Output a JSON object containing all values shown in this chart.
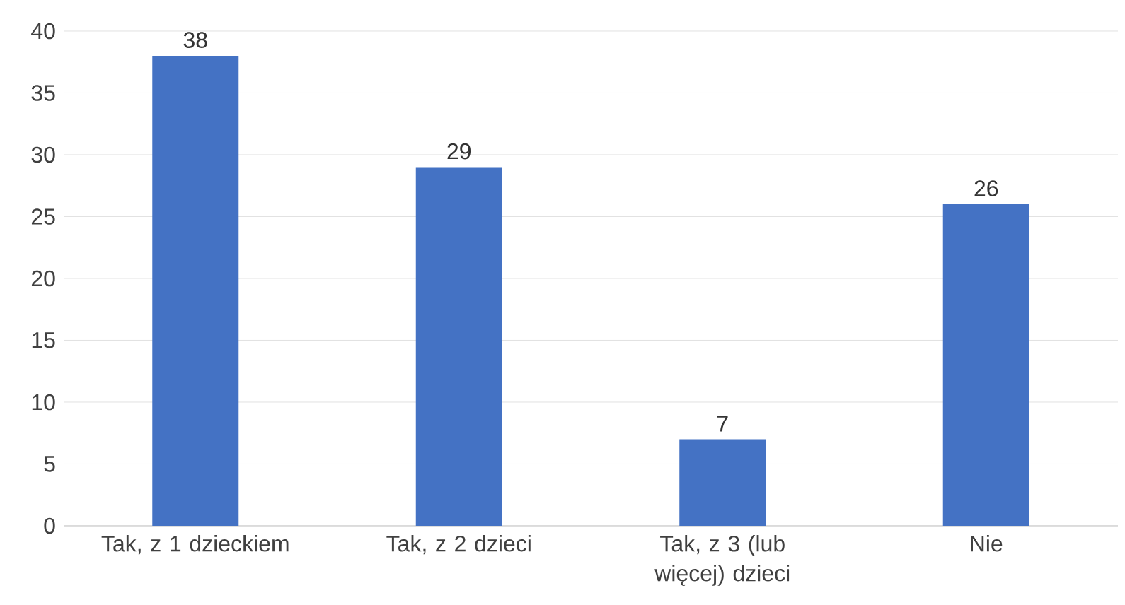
{
  "chart_data": {
    "type": "bar",
    "categories": [
      "Tak, z 1 dzieckiem",
      "Tak, z 2 dzieci",
      "Tak, z 3 (lub więcej) dzieci",
      "Nie"
    ],
    "values": [
      38,
      29,
      7,
      26
    ],
    "color": "#4472c4",
    "ylim": [
      0,
      40
    ],
    "yticks": [
      0,
      5,
      10,
      15,
      20,
      25,
      30,
      35,
      40
    ],
    "grid": "y",
    "data_labels": true
  }
}
